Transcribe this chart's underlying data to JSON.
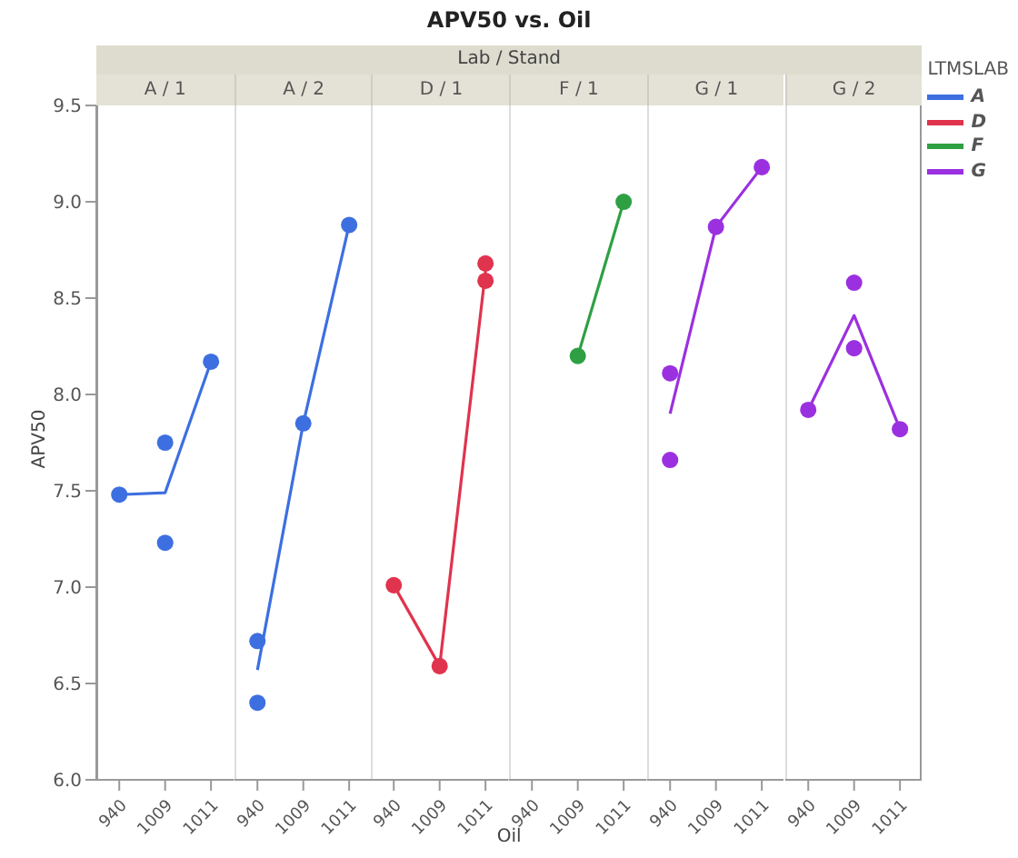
{
  "chart_data": [
    {
      "type": "line",
      "title": "A / 1",
      "annotations": [
        "APV50 vs. Oil",
        "Lab / Stand"
      ],
      "ylabel": "APV50",
      "categories": [
        "940",
        "1009",
        "1011"
      ],
      "ylim": [
        6,
        9.5
      ],
      "yticks": [
        {
          "value": 6,
          "label": "6.0"
        },
        {
          "value": 6.5,
          "label": "6.5"
        },
        {
          "value": 7,
          "label": "7.0"
        },
        {
          "value": 7.5,
          "label": "7.5"
        },
        {
          "value": 8,
          "label": "8.0"
        },
        {
          "value": 8.5,
          "label": "8.5"
        },
        {
          "value": 9,
          "label": "9.0"
        },
        {
          "value": 9.5,
          "label": "9.5"
        }
      ],
      "series": [
        {
          "name": "A",
          "color": "#3d6fe0",
          "marker": "none",
          "values": [
            7.48,
            7.49,
            8.17
          ]
        },
        {
          "type": "scatter",
          "color": "#3d6fe0",
          "marker": "circle",
          "values": [
            7.48,
            7.75,
            8.17
          ]
        },
        {
          "type": "scatter",
          "color": "#3d6fe0",
          "marker": "circle",
          "values": [
            null,
            7.23,
            null
          ]
        }
      ]
    },
    {
      "type": "line",
      "title": "A / 2",
      "categories": [
        "940",
        "1009",
        "1011"
      ],
      "ylim": [
        6,
        9.5
      ],
      "tick_labels": "x",
      "series": [
        {
          "color": "#3d6fe0",
          "marker": "none",
          "values": [
            6.57,
            7.85,
            8.88
          ]
        },
        {
          "type": "scatter",
          "color": "#3d6fe0",
          "marker": "circle",
          "values": [
            6.72,
            7.85,
            8.88
          ]
        },
        {
          "type": "scatter",
          "color": "#3d6fe0",
          "marker": "circle",
          "values": [
            6.4,
            null,
            null
          ]
        }
      ]
    },
    {
      "type": "line",
      "title": "D / 1",
      "categories": [
        "940",
        "1009",
        "1011"
      ],
      "ylim": [
        6,
        9.5
      ],
      "tick_labels": "x",
      "series": [
        {
          "name": "D",
          "color": "#e0334d",
          "marker": "none",
          "values": [
            7.01,
            6.59,
            8.64
          ]
        },
        {
          "type": "scatter",
          "color": "#e0334d",
          "marker": "circle",
          "values": [
            7.01,
            6.59,
            8.68
          ]
        },
        {
          "type": "scatter",
          "color": "#e0334d",
          "marker": "circle",
          "values": [
            null,
            null,
            8.59
          ]
        }
      ]
    },
    {
      "type": "line",
      "title": "F / 1",
      "xlabel": "Oil",
      "categories": [
        "940",
        "1009",
        "1011"
      ],
      "ylim": [
        6,
        9.5
      ],
      "tick_labels": "x",
      "series": [
        {
          "name": "F",
          "color": "#2ea043",
          "marker": "none",
          "values": [
            null,
            8.2,
            9.0
          ]
        },
        {
          "type": "scatter",
          "color": "#2ea043",
          "marker": "circle",
          "values": [
            null,
            8.2,
            9.0
          ]
        }
      ]
    },
    {
      "type": "line",
      "title": "G / 1",
      "categories": [
        "940",
        "1009",
        "1011"
      ],
      "ylim": [
        6,
        9.5
      ],
      "tick_labels": "x",
      "series": [
        {
          "name": "G",
          "color": "#9b30e0",
          "marker": "none",
          "values": [
            7.9,
            8.87,
            9.18
          ]
        },
        {
          "type": "scatter",
          "color": "#9b30e0",
          "marker": "circle",
          "values": [
            8.11,
            8.87,
            9.18
          ]
        },
        {
          "type": "scatter",
          "color": "#9b30e0",
          "marker": "circle",
          "values": [
            7.66,
            null,
            null
          ]
        }
      ]
    },
    {
      "type": "line",
      "title": "G / 2",
      "categories": [
        "940",
        "1009",
        "1011"
      ],
      "ylim": [
        6,
        9.5
      ],
      "tick_labels": "x",
      "legend": "right",
      "legend_title": "LTMSLAB",
      "series": [
        {
          "color": "#9b30e0",
          "marker": "none",
          "values": [
            7.92,
            8.41,
            7.82
          ]
        },
        {
          "type": "scatter",
          "color": "#9b30e0",
          "marker": "circle",
          "values": [
            7.92,
            8.58,
            7.82
          ]
        },
        {
          "type": "scatter",
          "color": "#9b30e0",
          "marker": "circle",
          "values": [
            null,
            8.24,
            null
          ]
        }
      ]
    }
  ]
}
